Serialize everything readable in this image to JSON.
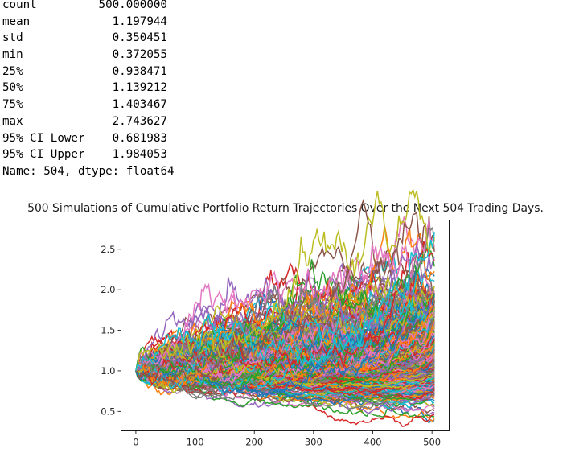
{
  "output": {
    "stats": [
      {
        "label": "count",
        "value": "500.000000"
      },
      {
        "label": "mean",
        "value": "1.197944"
      },
      {
        "label": "std",
        "value": "0.350451"
      },
      {
        "label": "min",
        "value": "0.372055"
      },
      {
        "label": "25%",
        "value": "0.938471"
      },
      {
        "label": "50%",
        "value": "1.139212"
      },
      {
        "label": "75%",
        "value": "1.403467"
      },
      {
        "label": "max",
        "value": "2.743627"
      },
      {
        "label": "95% CI Lower",
        "value": "0.681983"
      },
      {
        "label": "95% CI Upper",
        "value": "1.984053"
      }
    ],
    "footer": "Name: 504, dtype: float64"
  },
  "chart_data": {
    "type": "line",
    "title": "500 Simulations of Cumulative Portfolio Return Trajectories Over the Next 504 Trading Days.",
    "xlabel": "",
    "ylabel": "",
    "xlim": [
      -25,
      529
    ],
    "ylim": [
      0.26,
      2.86
    ],
    "x_ticks": [
      0,
      100,
      200,
      300,
      400,
      500
    ],
    "y_ticks": [
      0.5,
      1.0,
      1.5,
      2.0,
      2.5
    ],
    "x_tick_labels": [
      "0",
      "100",
      "200",
      "300",
      "400",
      "500"
    ],
    "y_tick_labels": [
      "0.5",
      "1.0",
      "1.5",
      "2.0",
      "2.5"
    ],
    "grid": false,
    "legend": "none",
    "num_simulations": 500,
    "num_days": 504,
    "start_value": 1.0,
    "final_value_summary": {
      "mean": 1.197944,
      "std": 0.350451,
      "min": 0.372055,
      "p25": 0.938471,
      "median": 1.139212,
      "p75": 1.403467,
      "max": 2.743627,
      "ci_lower": 0.681983,
      "ci_upper": 1.984053
    },
    "palette": [
      "#1f77b4",
      "#ff7f0e",
      "#2ca02c",
      "#d62728",
      "#9467bd",
      "#8c564b",
      "#e377c2",
      "#7f7f7f",
      "#bcbd22",
      "#17becf"
    ]
  }
}
